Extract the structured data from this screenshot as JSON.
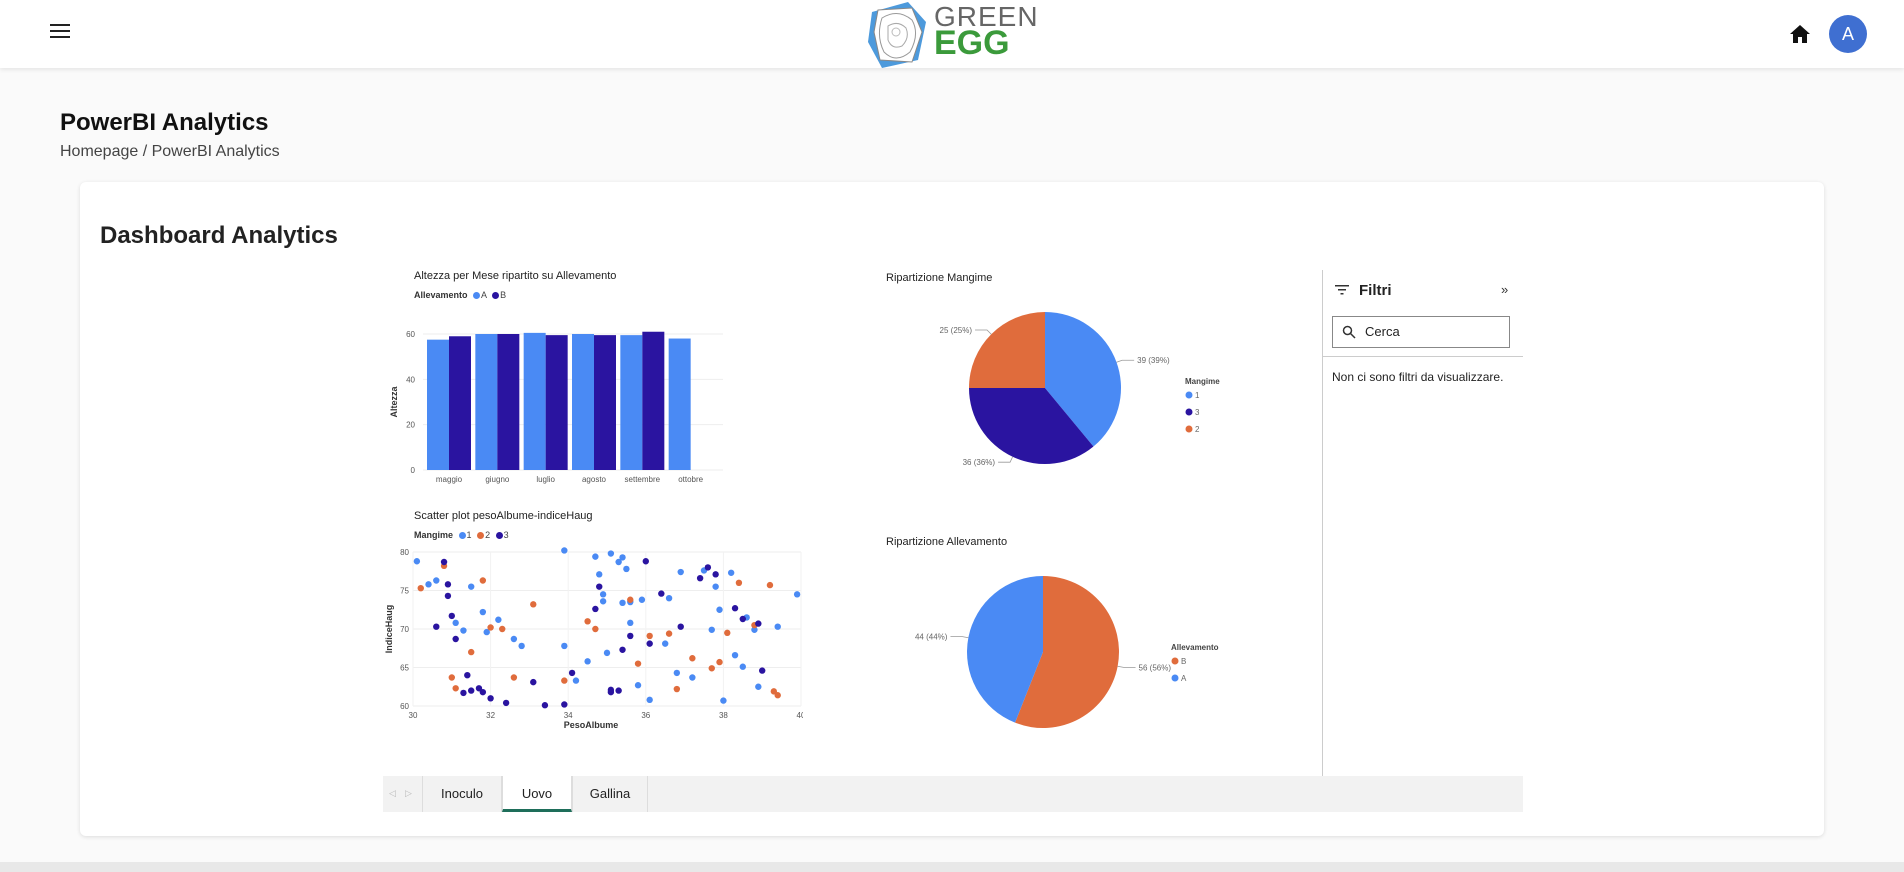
{
  "header": {
    "logo_top": "GREEN",
    "logo_bottom": "EGG",
    "avatar_initial": "A"
  },
  "page": {
    "title": "PowerBI Analytics",
    "breadcrumb": "Homepage / PowerBI Analytics",
    "card_title": "Dashboard Analytics"
  },
  "colors": {
    "series_1_blue": "#4a8af4",
    "series_2_navy": "#2a14a0",
    "series_3_orange": "#e06c3c",
    "accent_tab": "#1e6e5a",
    "avatar": "#3f6fd1"
  },
  "chart_data": [
    {
      "type": "bar",
      "title": "Altezza per Mese ripartito su Allevamento",
      "legend_title": "Allevamento",
      "xlabel": "Mese",
      "ylabel": "Altezza",
      "ylim": [
        0,
        60
      ],
      "yticks": [
        "0",
        "20",
        "40",
        "60"
      ],
      "categories": [
        "maggio",
        "giugno",
        "luglio",
        "agosto",
        "settembre",
        "ottobre"
      ],
      "series": [
        {
          "name": "A",
          "color": "#4a8af4",
          "values": [
            57.5,
            60,
            60.5,
            60,
            59.5,
            58
          ]
        },
        {
          "name": "B",
          "color": "#2a14a0",
          "values": [
            59,
            60,
            59.5,
            59.5,
            61,
            null
          ]
        }
      ],
      "legend_position": "top-left"
    },
    {
      "type": "pie",
      "title": "Ripartizione Mangime",
      "legend_title": "Mangime",
      "slices": [
        {
          "name": "1",
          "value": 39,
          "label": "39 (39%)",
          "color": "#4a8af4"
        },
        {
          "name": "3",
          "value": 36,
          "label": "36 (36%)",
          "color": "#2a14a0"
        },
        {
          "name": "2",
          "value": 25,
          "label": "25 (25%)",
          "color": "#e06c3c"
        }
      ],
      "legend_position": "right"
    },
    {
      "type": "scatter",
      "title": "Scatter plot pesoAlbume-indiceHaug",
      "legend_title": "Mangime",
      "xlabel": "PesoAlbume",
      "ylabel": "IndiceHaug",
      "xlim": [
        30,
        40
      ],
      "ylim": [
        60,
        80
      ],
      "xticks": [
        "30",
        "32",
        "34",
        "36",
        "38",
        "40"
      ],
      "yticks": [
        "60",
        "65",
        "70",
        "75",
        "80"
      ],
      "series": [
        {
          "name": "1",
          "color": "#4a8af4",
          "points": [
            [
              30.1,
              78.8
            ],
            [
              30.4,
              75.8
            ],
            [
              30.6,
              76.3
            ],
            [
              31.1,
              70.8
            ],
            [
              31.3,
              69.8
            ],
            [
              31.5,
              75.5
            ],
            [
              31.8,
              72.2
            ],
            [
              31.9,
              69.6
            ],
            [
              32.2,
              71.2
            ],
            [
              32.6,
              68.7
            ],
            [
              32.8,
              67.8
            ],
            [
              33.9,
              67.8
            ],
            [
              33.9,
              80.2
            ],
            [
              34.2,
              63.3
            ],
            [
              34.5,
              65.8
            ],
            [
              34.7,
              79.4
            ],
            [
              34.8,
              77.1
            ],
            [
              34.9,
              74.5
            ],
            [
              34.9,
              73.6
            ],
            [
              35.0,
              66.9
            ],
            [
              35.1,
              79.8
            ],
            [
              35.3,
              78.7
            ],
            [
              35.4,
              79.3
            ],
            [
              35.4,
              73.4
            ],
            [
              35.5,
              77.8
            ],
            [
              35.6,
              73.5
            ],
            [
              35.6,
              70.8
            ],
            [
              35.8,
              62.7
            ],
            [
              35.9,
              73.8
            ],
            [
              36.1,
              60.8
            ],
            [
              36.5,
              68.1
            ],
            [
              36.6,
              74.0
            ],
            [
              36.8,
              64.3
            ],
            [
              36.9,
              77.4
            ],
            [
              37.2,
              63.7
            ],
            [
              37.5,
              77.6
            ],
            [
              37.7,
              69.9
            ],
            [
              37.8,
              75.5
            ],
            [
              37.9,
              72.5
            ],
            [
              38.0,
              60.7
            ],
            [
              38.2,
              77.3
            ],
            [
              38.3,
              66.6
            ],
            [
              38.5,
              65.1
            ],
            [
              38.6,
              71.5
            ],
            [
              38.8,
              69.9
            ],
            [
              38.9,
              62.5
            ],
            [
              39.4,
              70.3
            ],
            [
              39.9,
              74.5
            ]
          ]
        },
        {
          "name": "2",
          "color": "#e06c3c",
          "points": [
            [
              30.2,
              75.3
            ],
            [
              30.8,
              78.2
            ],
            [
              31.0,
              63.7
            ],
            [
              31.1,
              62.3
            ],
            [
              31.5,
              67.0
            ],
            [
              31.8,
              76.3
            ],
            [
              32.0,
              70.2
            ],
            [
              32.3,
              70.0
            ],
            [
              32.6,
              63.7
            ],
            [
              33.1,
              73.2
            ],
            [
              33.9,
              63.3
            ],
            [
              34.5,
              71.0
            ],
            [
              34.7,
              70.0
            ],
            [
              35.6,
              73.8
            ],
            [
              35.8,
              65.5
            ],
            [
              36.1,
              69.1
            ],
            [
              36.6,
              69.4
            ],
            [
              36.8,
              62.2
            ],
            [
              37.2,
              66.2
            ],
            [
              37.7,
              64.9
            ],
            [
              37.9,
              65.7
            ],
            [
              38.1,
              69.5
            ],
            [
              38.4,
              76.0
            ],
            [
              38.8,
              70.5
            ],
            [
              39.2,
              75.7
            ],
            [
              39.3,
              61.9
            ],
            [
              39.4,
              61.4
            ]
          ]
        },
        {
          "name": "3",
          "color": "#2a14a0",
          "points": [
            [
              30.6,
              70.3
            ],
            [
              30.8,
              78.7
            ],
            [
              30.9,
              75.8
            ],
            [
              30.9,
              74.3
            ],
            [
              31.0,
              71.7
            ],
            [
              31.1,
              68.7
            ],
            [
              31.3,
              61.7
            ],
            [
              31.4,
              64.0
            ],
            [
              31.5,
              62.0
            ],
            [
              31.7,
              62.3
            ],
            [
              31.8,
              61.8
            ],
            [
              32.0,
              61.0
            ],
            [
              32.4,
              60.4
            ],
            [
              33.1,
              63.1
            ],
            [
              33.4,
              60.1
            ],
            [
              33.9,
              60.2
            ],
            [
              34.1,
              64.3
            ],
            [
              34.7,
              72.6
            ],
            [
              34.8,
              75.5
            ],
            [
              35.1,
              61.8
            ],
            [
              35.1,
              62.1
            ],
            [
              35.3,
              62.0
            ],
            [
              35.4,
              67.3
            ],
            [
              35.6,
              69.1
            ],
            [
              36.0,
              78.8
            ],
            [
              36.1,
              68.1
            ],
            [
              36.4,
              74.6
            ],
            [
              36.9,
              70.3
            ],
            [
              37.4,
              76.6
            ],
            [
              37.6,
              78.0
            ],
            [
              37.8,
              77.1
            ],
            [
              38.3,
              72.7
            ],
            [
              38.5,
              71.3
            ],
            [
              38.9,
              70.7
            ],
            [
              39.0,
              64.6
            ]
          ]
        }
      ],
      "legend_position": "top-left"
    },
    {
      "type": "pie",
      "title": "Ripartizione Allevamento",
      "legend_title": "Allevamento",
      "slices": [
        {
          "name": "B",
          "value": 56,
          "label": "56 (56%)",
          "color": "#e06c3c"
        },
        {
          "name": "A",
          "value": 44,
          "label": "44 (44%)",
          "color": "#4a8af4"
        }
      ],
      "legend_position": "right"
    }
  ],
  "filters": {
    "title": "Filtri",
    "search_placeholder": "Cerca",
    "empty_message": "Non ci sono filtri da visualizzare."
  },
  "tabs": [
    {
      "label": "Inoculo",
      "active": false
    },
    {
      "label": "Uovo",
      "active": true
    },
    {
      "label": "Gallina",
      "active": false
    }
  ]
}
